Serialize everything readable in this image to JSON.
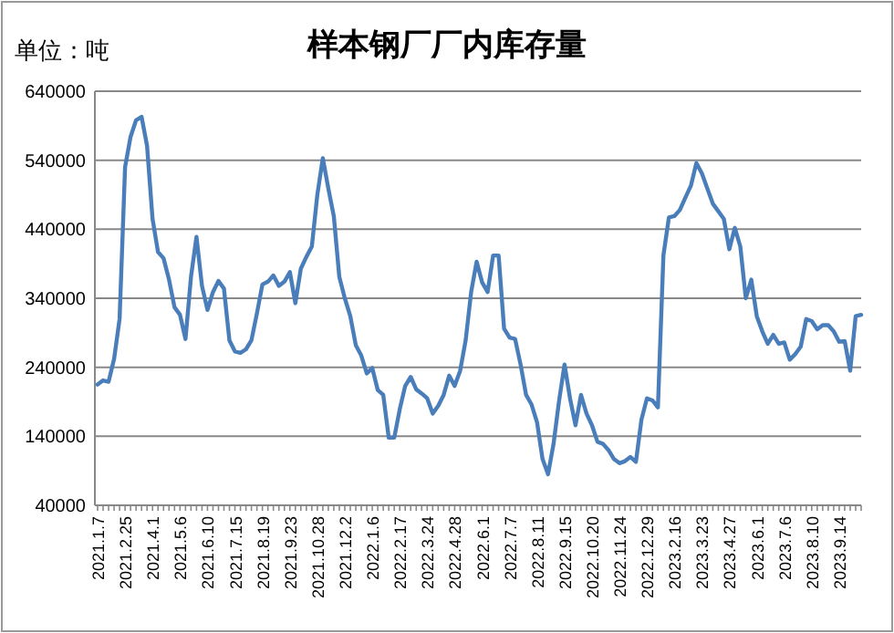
{
  "chart_data": {
    "type": "line",
    "title": "样本钢厂厂内库存量",
    "subtitle": "单位：吨",
    "categories": [
      "2021.1.7",
      null,
      null,
      null,
      null,
      "2021.2.25",
      null,
      null,
      null,
      null,
      "2021.4.1",
      null,
      null,
      null,
      null,
      "2021.5.6",
      null,
      null,
      null,
      null,
      "2021.6.10",
      null,
      null,
      null,
      null,
      "2021.7.15",
      null,
      null,
      null,
      null,
      "2021.8.19",
      null,
      null,
      null,
      null,
      "2021.9.23",
      null,
      null,
      null,
      null,
      "2021.10.28",
      null,
      null,
      null,
      null,
      "2021.12.2",
      null,
      null,
      null,
      null,
      "2022.1.6",
      null,
      null,
      null,
      null,
      "2022.2.17",
      null,
      null,
      null,
      null,
      "2022.3.24",
      null,
      null,
      null,
      null,
      "2022.4.28",
      null,
      null,
      null,
      null,
      "2022.6.1",
      null,
      null,
      null,
      null,
      "2022.7.7",
      null,
      null,
      null,
      null,
      "2022.8.11",
      null,
      null,
      null,
      null,
      "2022.9.15",
      null,
      null,
      null,
      null,
      "2022.10.20",
      null,
      null,
      null,
      null,
      "2022.11.24",
      null,
      null,
      null,
      null,
      "2022.12.29",
      null,
      null,
      null,
      null,
      "2023.2.16",
      null,
      null,
      null,
      null,
      "2023.3.23",
      null,
      null,
      null,
      null,
      "2023.4.27",
      null,
      null,
      null,
      null,
      "2023.6.1",
      null,
      null,
      null,
      null,
      "2023.7.6",
      null,
      null,
      null,
      null,
      "2023.8.10",
      null,
      null,
      null,
      null,
      "2023.9.14",
      null,
      null,
      null,
      null
    ],
    "series": [
      {
        "color": "#4a7ebb",
        "values": [
          215000,
          221000,
          219000,
          252000,
          310000,
          530000,
          574000,
          598000,
          603000,
          561000,
          455000,
          407000,
          398000,
          367000,
          327000,
          316000,
          281000,
          371000,
          429000,
          358000,
          323000,
          349000,
          365000,
          354000,
          279000,
          263000,
          261000,
          266000,
          279000,
          318000,
          360000,
          364000,
          373000,
          358000,
          364000,
          378000,
          333000,
          383000,
          400000,
          415000,
          490000,
          543000,
          499000,
          459000,
          371000,
          340000,
          314000,
          272000,
          257000,
          231000,
          239000,
          207000,
          200000,
          138000,
          138000,
          179000,
          213000,
          226000,
          208000,
          202000,
          195000,
          173000,
          184000,
          200000,
          228000,
          213000,
          235000,
          279000,
          349000,
          393000,
          363000,
          349000,
          402000,
          402000,
          296000,
          283000,
          281000,
          244000,
          200000,
          186000,
          160000,
          107000,
          85000,
          129000,
          191000,
          244000,
          195000,
          156000,
          200000,
          173000,
          156000,
          132000,
          129000,
          120000,
          107000,
          101000,
          104000,
          110000,
          103000,
          164000,
          195000,
          192000,
          182000,
          402000,
          457000,
          459000,
          468000,
          486000,
          503000,
          536000,
          521000,
          499000,
          477000,
          466000,
          455000,
          411000,
          442000,
          415000,
          340000,
          367000,
          314000,
          292000,
          274000,
          287000,
          274000,
          276000,
          251000,
          259000,
          270000,
          310000,
          307000,
          295000,
          301000,
          301000,
          292000,
          277000,
          278000,
          235000,
          314000,
          316000
        ]
      }
    ],
    "ylim": [
      40000,
      640000
    ],
    "yticks": [
      40000,
      140000,
      240000,
      340000,
      440000,
      540000,
      640000
    ],
    "grid": "y"
  }
}
